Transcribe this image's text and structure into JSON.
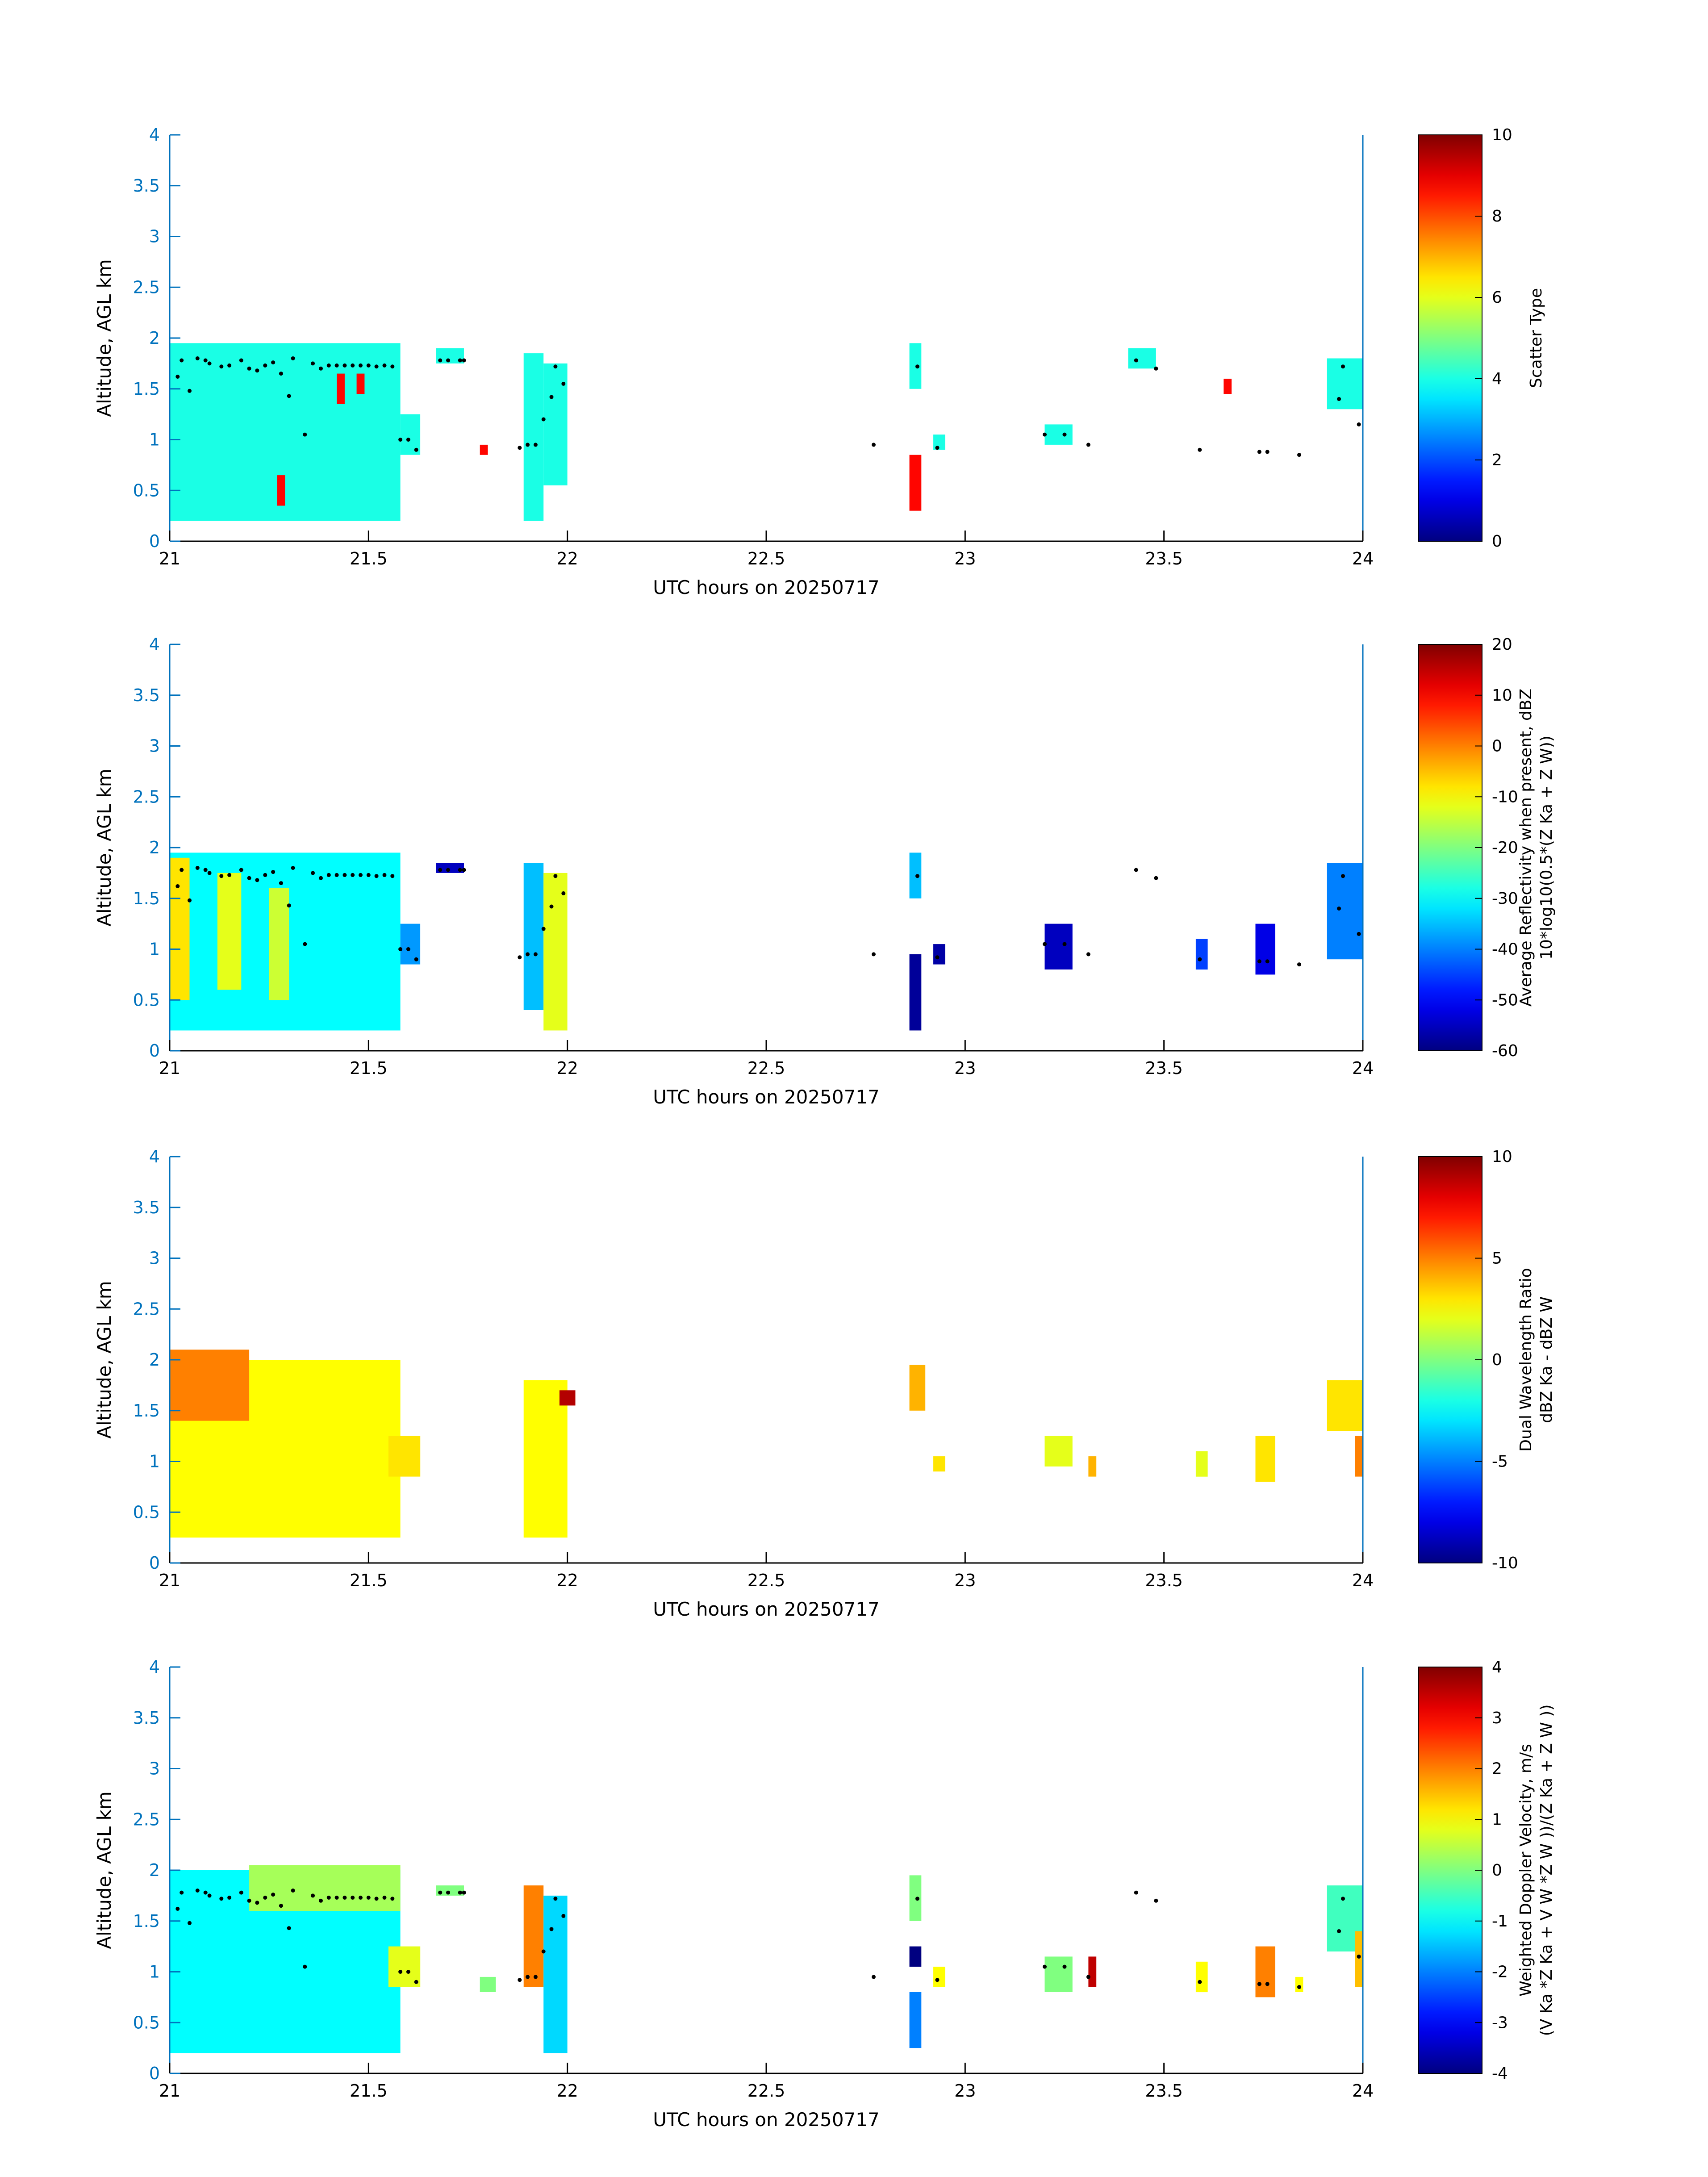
{
  "colors": {
    "axis_blue": "#0072BD",
    "colormap": "jet",
    "dot": "#000000"
  },
  "chart_data": [
    {
      "type": "heatmap",
      "xlabel": "UTC hours on 20250717",
      "ylabel": "Altitude, AGL km",
      "xlim": [
        21,
        24
      ],
      "ylim": [
        0,
        4
      ],
      "xticks": [
        "21",
        "21.5",
        "22",
        "22.5",
        "23",
        "23.5",
        "24"
      ],
      "yticks": [
        "0",
        "0.5",
        "1",
        "1.5",
        "2",
        "2.5",
        "3",
        "3.5",
        "4"
      ],
      "colorbar": {
        "label_lines": [
          "Scatter Type"
        ],
        "clim": [
          0,
          10
        ],
        "ticks": [
          "0",
          "2",
          "4",
          "6",
          "8",
          "10"
        ]
      },
      "blocks": [
        {
          "x0": 21.0,
          "x1": 21.58,
          "y0": 0.2,
          "y1": 1.95,
          "v": 4
        },
        {
          "x0": 21.58,
          "x1": 21.63,
          "y0": 0.85,
          "y1": 1.25,
          "v": 4
        },
        {
          "x0": 21.67,
          "x1": 21.74,
          "y0": 1.75,
          "y1": 1.9,
          "v": 4
        },
        {
          "x0": 21.89,
          "x1": 21.94,
          "y0": 0.2,
          "y1": 1.85,
          "v": 4
        },
        {
          "x0": 21.94,
          "x1": 22.0,
          "y0": 0.55,
          "y1": 1.75,
          "v": 4
        },
        {
          "x0": 22.86,
          "x1": 22.89,
          "y0": 1.5,
          "y1": 1.95,
          "v": 4
        },
        {
          "x0": 22.92,
          "x1": 22.95,
          "y0": 0.9,
          "y1": 1.05,
          "v": 4
        },
        {
          "x0": 23.2,
          "x1": 23.27,
          "y0": 0.95,
          "y1": 1.15,
          "v": 4
        },
        {
          "x0": 23.41,
          "x1": 23.48,
          "y0": 1.7,
          "y1": 1.9,
          "v": 4
        },
        {
          "x0": 23.91,
          "x1": 24.0,
          "y0": 1.3,
          "y1": 1.8,
          "v": 4
        },
        {
          "x0": 21.27,
          "x1": 21.29,
          "y0": 0.35,
          "y1": 0.65,
          "v": 8.7
        },
        {
          "x0": 21.42,
          "x1": 21.44,
          "y0": 1.35,
          "y1": 1.65,
          "v": 8.7
        },
        {
          "x0": 21.47,
          "x1": 21.49,
          "y0": 1.45,
          "y1": 1.65,
          "v": 8.7
        },
        {
          "x0": 21.78,
          "x1": 21.8,
          "y0": 0.85,
          "y1": 0.95,
          "v": 8.7
        },
        {
          "x0": 22.86,
          "x1": 22.89,
          "y0": 0.3,
          "y1": 0.85,
          "v": 8.7
        },
        {
          "x0": 23.65,
          "x1": 23.67,
          "y0": 1.45,
          "y1": 1.6,
          "v": 8.7
        }
      ]
    },
    {
      "type": "heatmap",
      "xlabel": "UTC hours on 20250717",
      "ylabel": "Altitude, AGL km",
      "xlim": [
        21,
        24
      ],
      "ylim": [
        0,
        4
      ],
      "xticks": [
        "21",
        "21.5",
        "22",
        "22.5",
        "23",
        "23.5",
        "24"
      ],
      "yticks": [
        "0",
        "0.5",
        "1",
        "1.5",
        "2",
        "2.5",
        "3",
        "3.5",
        "4"
      ],
      "colorbar": {
        "label_lines": [
          "Average Reflectivity when present, dBZ",
          "10*log10(0.5*(Z Ka + Z W))"
        ],
        "clim": [
          -60,
          20
        ],
        "ticks": [
          "-60",
          "-50",
          "-40",
          "-30",
          "-20",
          "-10",
          "0",
          "10",
          "20"
        ]
      },
      "blocks": [
        {
          "x0": 21.0,
          "x1": 21.58,
          "y0": 0.2,
          "y1": 1.95,
          "v": -30
        },
        {
          "x0": 21.0,
          "x1": 21.05,
          "y0": 0.5,
          "y1": 1.9,
          "v": -8
        },
        {
          "x0": 21.12,
          "x1": 21.18,
          "y0": 0.6,
          "y1": 1.75,
          "v": -12
        },
        {
          "x0": 21.25,
          "x1": 21.3,
          "y0": 0.5,
          "y1": 1.6,
          "v": -14
        },
        {
          "x0": 21.58,
          "x1": 21.63,
          "y0": 0.85,
          "y1": 1.25,
          "v": -38
        },
        {
          "x0": 21.67,
          "x1": 21.74,
          "y0": 1.75,
          "y1": 1.85,
          "v": -55
        },
        {
          "x0": 21.89,
          "x1": 21.94,
          "y0": 0.4,
          "y1": 1.85,
          "v": -35
        },
        {
          "x0": 21.94,
          "x1": 22.0,
          "y0": 0.2,
          "y1": 1.75,
          "v": -12
        },
        {
          "x0": 22.86,
          "x1": 22.89,
          "y0": 0.2,
          "y1": 0.95,
          "v": -58
        },
        {
          "x0": 22.86,
          "x1": 22.89,
          "y0": 1.5,
          "y1": 1.95,
          "v": -35
        },
        {
          "x0": 22.92,
          "x1": 22.95,
          "y0": 0.85,
          "y1": 1.05,
          "v": -57
        },
        {
          "x0": 23.2,
          "x1": 23.27,
          "y0": 0.8,
          "y1": 1.25,
          "v": -55
        },
        {
          "x0": 23.58,
          "x1": 23.61,
          "y0": 0.8,
          "y1": 1.1,
          "v": -45
        },
        {
          "x0": 23.73,
          "x1": 23.78,
          "y0": 0.75,
          "y1": 1.25,
          "v": -52
        },
        {
          "x0": 23.91,
          "x1": 24.0,
          "y0": 0.9,
          "y1": 1.85,
          "v": -40
        }
      ]
    },
    {
      "type": "heatmap",
      "xlabel": "UTC hours on 20250717",
      "ylabel": "Altitude, AGL km",
      "xlim": [
        21,
        24
      ],
      "ylim": [
        0,
        4
      ],
      "xticks": [
        "21",
        "21.5",
        "22",
        "22.5",
        "23",
        "23.5",
        "24"
      ],
      "yticks": [
        "0",
        "0.5",
        "1",
        "1.5",
        "2",
        "2.5",
        "3",
        "3.5",
        "4"
      ],
      "colorbar": {
        "label_lines": [
          "Dual Wavelength Ratio",
          "dBZ Ka - dBZ W"
        ],
        "clim": [
          -10,
          10
        ],
        "ticks": [
          "-10",
          "-5",
          "0",
          "5",
          "10"
        ]
      },
      "blocks": [
        {
          "x0": 21.0,
          "x1": 21.58,
          "y0": 0.25,
          "y1": 2.0,
          "v": 2.5
        },
        {
          "x0": 21.0,
          "x1": 21.2,
          "y0": 1.4,
          "y1": 2.1,
          "v": 5
        },
        {
          "x0": 21.55,
          "x1": 21.63,
          "y0": 0.85,
          "y1": 1.25,
          "v": 3
        },
        {
          "x0": 21.89,
          "x1": 22.0,
          "y0": 0.25,
          "y1": 1.8,
          "v": 2.5
        },
        {
          "x0": 21.98,
          "x1": 22.02,
          "y0": 1.55,
          "y1": 1.7,
          "v": 9
        },
        {
          "x0": 22.86,
          "x1": 22.9,
          "y0": 1.5,
          "y1": 1.95,
          "v": 4
        },
        {
          "x0": 22.92,
          "x1": 22.95,
          "y0": 0.9,
          "y1": 1.05,
          "v": 3
        },
        {
          "x0": 23.2,
          "x1": 23.27,
          "y0": 0.95,
          "y1": 1.25,
          "v": 2
        },
        {
          "x0": 23.31,
          "x1": 23.33,
          "y0": 0.85,
          "y1": 1.05,
          "v": 4
        },
        {
          "x0": 23.58,
          "x1": 23.61,
          "y0": 0.85,
          "y1": 1.1,
          "v": 2
        },
        {
          "x0": 23.73,
          "x1": 23.78,
          "y0": 0.8,
          "y1": 1.25,
          "v": 3
        },
        {
          "x0": 23.91,
          "x1": 24.0,
          "y0": 1.3,
          "y1": 1.8,
          "v": 3
        },
        {
          "x0": 23.98,
          "x1": 24.0,
          "y0": 0.85,
          "y1": 1.25,
          "v": 5
        }
      ]
    },
    {
      "type": "heatmap",
      "xlabel": "UTC hours on 20250717",
      "ylabel": "Altitude, AGL km",
      "xlim": [
        21,
        24
      ],
      "ylim": [
        0,
        4
      ],
      "xticks": [
        "21",
        "21.5",
        "22",
        "22.5",
        "23",
        "23.5",
        "24"
      ],
      "yticks": [
        "0",
        "0.5",
        "1",
        "1.5",
        "2",
        "2.5",
        "3",
        "3.5",
        "4"
      ],
      "colorbar": {
        "label_lines": [
          "Weighted Doppler Velocity, m/s",
          "(V Ka *Z Ka + V W *Z W ))/(Z Ka + Z W ))"
        ],
        "clim": [
          -4,
          4
        ],
        "ticks": [
          "-4",
          "-3",
          "-2",
          "-1",
          "0",
          "1",
          "2",
          "3",
          "4"
        ]
      },
      "blocks": [
        {
          "x0": 21.0,
          "x1": 21.58,
          "y0": 0.2,
          "y1": 2.0,
          "v": -1
        },
        {
          "x0": 21.2,
          "x1": 21.58,
          "y0": 1.6,
          "y1": 2.05,
          "v": 0.3
        },
        {
          "x0": 21.55,
          "x1": 21.63,
          "y0": 0.85,
          "y1": 1.25,
          "v": 0.8
        },
        {
          "x0": 21.67,
          "x1": 21.74,
          "y0": 1.75,
          "y1": 1.85,
          "v": 0
        },
        {
          "x0": 21.78,
          "x1": 21.82,
          "y0": 0.8,
          "y1": 0.95,
          "v": 0
        },
        {
          "x0": 21.89,
          "x1": 21.94,
          "y0": 0.85,
          "y1": 1.85,
          "v": 2
        },
        {
          "x0": 21.94,
          "x1": 22.0,
          "y0": 0.2,
          "y1": 1.75,
          "v": -1.3
        },
        {
          "x0": 22.86,
          "x1": 22.89,
          "y0": 0.25,
          "y1": 0.8,
          "v": -2
        },
        {
          "x0": 22.86,
          "x1": 22.89,
          "y0": 1.05,
          "y1": 1.25,
          "v": -4
        },
        {
          "x0": 22.86,
          "x1": 22.89,
          "y0": 1.5,
          "y1": 1.95,
          "v": 0
        },
        {
          "x0": 22.92,
          "x1": 22.95,
          "y0": 0.85,
          "y1": 1.05,
          "v": 1
        },
        {
          "x0": 23.2,
          "x1": 23.27,
          "y0": 0.8,
          "y1": 1.15,
          "v": 0
        },
        {
          "x0": 23.31,
          "x1": 23.33,
          "y0": 0.85,
          "y1": 1.15,
          "v": 3.5
        },
        {
          "x0": 23.58,
          "x1": 23.61,
          "y0": 0.8,
          "y1": 1.1,
          "v": 1
        },
        {
          "x0": 23.73,
          "x1": 23.78,
          "y0": 0.75,
          "y1": 1.25,
          "v": 2
        },
        {
          "x0": 23.83,
          "x1": 23.85,
          "y0": 0.8,
          "y1": 0.95,
          "v": 1
        },
        {
          "x0": 23.91,
          "x1": 24.0,
          "y0": 1.2,
          "y1": 1.85,
          "v": -0.5
        },
        {
          "x0": 23.98,
          "x1": 24.0,
          "y0": 0.85,
          "y1": 1.4,
          "v": 1.5
        }
      ]
    }
  ],
  "dots": [
    [
      21.02,
      1.62
    ],
    [
      21.03,
      1.78
    ],
    [
      21.05,
      1.48
    ],
    [
      21.07,
      1.8
    ],
    [
      21.09,
      1.78
    ],
    [
      21.1,
      1.75
    ],
    [
      21.13,
      1.72
    ],
    [
      21.15,
      1.73
    ],
    [
      21.18,
      1.78
    ],
    [
      21.2,
      1.7
    ],
    [
      21.22,
      1.68
    ],
    [
      21.24,
      1.73
    ],
    [
      21.26,
      1.76
    ],
    [
      21.28,
      1.65
    ],
    [
      21.3,
      1.43
    ],
    [
      21.31,
      1.8
    ],
    [
      21.34,
      1.05
    ],
    [
      21.36,
      1.75
    ],
    [
      21.38,
      1.7
    ],
    [
      21.4,
      1.73
    ],
    [
      21.42,
      1.73
    ],
    [
      21.44,
      1.73
    ],
    [
      21.46,
      1.73
    ],
    [
      21.48,
      1.73
    ],
    [
      21.5,
      1.73
    ],
    [
      21.52,
      1.72
    ],
    [
      21.54,
      1.73
    ],
    [
      21.56,
      1.72
    ],
    [
      21.58,
      1.0
    ],
    [
      21.6,
      1.0
    ],
    [
      21.62,
      0.9
    ],
    [
      21.68,
      1.78
    ],
    [
      21.7,
      1.78
    ],
    [
      21.73,
      1.78
    ],
    [
      21.74,
      1.78
    ],
    [
      21.88,
      0.92
    ],
    [
      21.9,
      0.95
    ],
    [
      21.92,
      0.95
    ],
    [
      21.94,
      1.2
    ],
    [
      21.96,
      1.42
    ],
    [
      21.97,
      1.72
    ],
    [
      21.99,
      1.55
    ],
    [
      22.77,
      0.95
    ],
    [
      22.88,
      1.72
    ],
    [
      22.93,
      0.92
    ],
    [
      23.2,
      1.05
    ],
    [
      23.25,
      1.05
    ],
    [
      23.31,
      0.95
    ],
    [
      23.43,
      1.78
    ],
    [
      23.48,
      1.7
    ],
    [
      23.59,
      0.9
    ],
    [
      23.74,
      0.88
    ],
    [
      23.76,
      0.88
    ],
    [
      23.84,
      0.85
    ],
    [
      23.94,
      1.4
    ],
    [
      23.95,
      1.72
    ],
    [
      23.99,
      1.15
    ]
  ]
}
